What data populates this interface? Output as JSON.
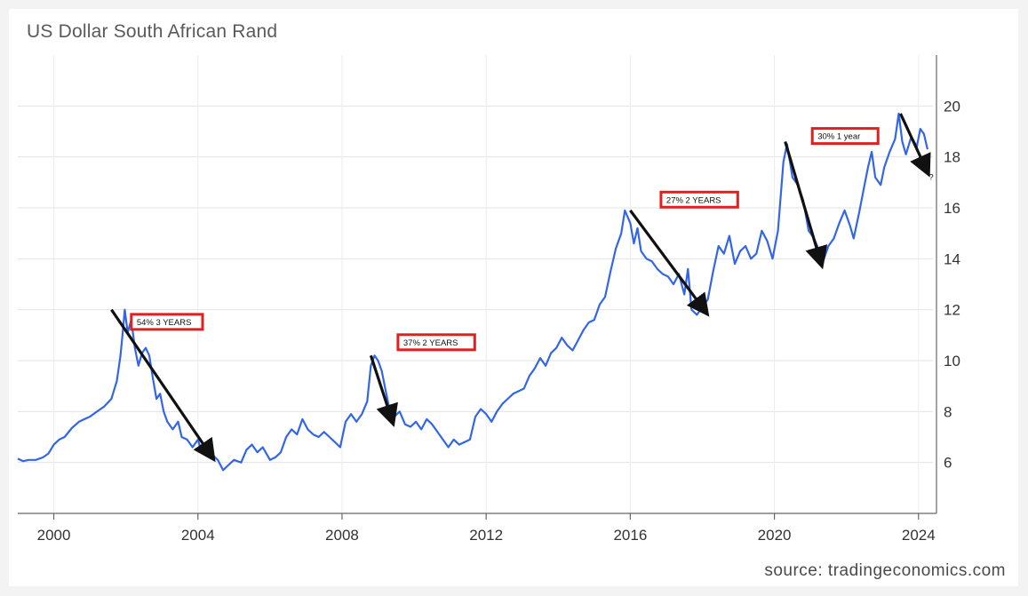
{
  "chart_data": {
    "type": "line",
    "title": "US Dollar South African Rand",
    "source": "source: tradingeconomics.com",
    "xlabel": "",
    "ylabel": "",
    "xlim": [
      1999,
      2024.4
    ],
    "ylim": [
      4,
      22
    ],
    "x_ticks": [
      2000,
      2004,
      2008,
      2012,
      2016,
      2020,
      2024
    ],
    "y_ticks": [
      6,
      8,
      10,
      12,
      14,
      16,
      18,
      20
    ],
    "grid": true,
    "line_color": "#3366e6",
    "series": [
      {
        "points": [
          [
            1999.0,
            6.15
          ],
          [
            1999.15,
            6.05
          ],
          [
            1999.3,
            6.1
          ],
          [
            1999.5,
            6.1
          ],
          [
            1999.7,
            6.2
          ],
          [
            1999.85,
            6.35
          ],
          [
            2000.0,
            6.7
          ],
          [
            2000.15,
            6.9
          ],
          [
            2000.3,
            7.0
          ],
          [
            2000.5,
            7.35
          ],
          [
            2000.7,
            7.6
          ],
          [
            2000.85,
            7.7
          ],
          [
            2001.0,
            7.8
          ],
          [
            2001.2,
            8.0
          ],
          [
            2001.4,
            8.2
          ],
          [
            2001.6,
            8.5
          ],
          [
            2001.75,
            9.2
          ],
          [
            2001.85,
            10.2
          ],
          [
            2001.92,
            11.2
          ],
          [
            2001.97,
            12.0
          ],
          [
            2002.05,
            11.1
          ],
          [
            2002.15,
            11.6
          ],
          [
            2002.25,
            10.5
          ],
          [
            2002.35,
            9.8
          ],
          [
            2002.45,
            10.3
          ],
          [
            2002.55,
            10.5
          ],
          [
            2002.65,
            10.2
          ],
          [
            2002.75,
            9.3
          ],
          [
            2002.85,
            8.5
          ],
          [
            2002.95,
            8.7
          ],
          [
            2003.05,
            8.0
          ],
          [
            2003.15,
            7.6
          ],
          [
            2003.3,
            7.3
          ],
          [
            2003.45,
            7.6
          ],
          [
            2003.55,
            7.0
          ],
          [
            2003.7,
            6.9
          ],
          [
            2003.85,
            6.6
          ],
          [
            2004.0,
            6.9
          ],
          [
            2004.1,
            6.4
          ],
          [
            2004.25,
            6.8
          ],
          [
            2004.4,
            6.3
          ],
          [
            2004.55,
            6.1
          ],
          [
            2004.7,
            5.7
          ],
          [
            2004.85,
            5.9
          ],
          [
            2005.0,
            6.1
          ],
          [
            2005.2,
            6.0
          ],
          [
            2005.35,
            6.5
          ],
          [
            2005.5,
            6.7
          ],
          [
            2005.65,
            6.4
          ],
          [
            2005.8,
            6.6
          ],
          [
            2006.0,
            6.1
          ],
          [
            2006.15,
            6.2
          ],
          [
            2006.3,
            6.4
          ],
          [
            2006.45,
            7.0
          ],
          [
            2006.6,
            7.3
          ],
          [
            2006.75,
            7.1
          ],
          [
            2006.9,
            7.7
          ],
          [
            2007.05,
            7.3
          ],
          [
            2007.2,
            7.1
          ],
          [
            2007.35,
            7.0
          ],
          [
            2007.5,
            7.2
          ],
          [
            2007.65,
            7.0
          ],
          [
            2007.8,
            6.8
          ],
          [
            2007.95,
            6.6
          ],
          [
            2008.1,
            7.6
          ],
          [
            2008.25,
            7.9
          ],
          [
            2008.4,
            7.6
          ],
          [
            2008.55,
            7.9
          ],
          [
            2008.7,
            8.4
          ],
          [
            2008.8,
            9.8
          ],
          [
            2008.9,
            10.2
          ],
          [
            2009.0,
            10.0
          ],
          [
            2009.1,
            9.6
          ],
          [
            2009.2,
            8.9
          ],
          [
            2009.3,
            8.2
          ],
          [
            2009.45,
            7.8
          ],
          [
            2009.6,
            8.0
          ],
          [
            2009.75,
            7.5
          ],
          [
            2009.9,
            7.4
          ],
          [
            2010.05,
            7.6
          ],
          [
            2010.2,
            7.3
          ],
          [
            2010.35,
            7.7
          ],
          [
            2010.5,
            7.5
          ],
          [
            2010.65,
            7.2
          ],
          [
            2010.8,
            6.9
          ],
          [
            2010.95,
            6.6
          ],
          [
            2011.1,
            6.9
          ],
          [
            2011.25,
            6.7
          ],
          [
            2011.4,
            6.8
          ],
          [
            2011.55,
            6.9
          ],
          [
            2011.7,
            7.8
          ],
          [
            2011.85,
            8.1
          ],
          [
            2012.0,
            7.9
          ],
          [
            2012.15,
            7.6
          ],
          [
            2012.3,
            8.0
          ],
          [
            2012.45,
            8.3
          ],
          [
            2012.6,
            8.5
          ],
          [
            2012.75,
            8.7
          ],
          [
            2012.9,
            8.8
          ],
          [
            2013.05,
            8.9
          ],
          [
            2013.2,
            9.4
          ],
          [
            2013.35,
            9.7
          ],
          [
            2013.5,
            10.1
          ],
          [
            2013.65,
            9.8
          ],
          [
            2013.8,
            10.3
          ],
          [
            2013.95,
            10.5
          ],
          [
            2014.1,
            10.9
          ],
          [
            2014.25,
            10.6
          ],
          [
            2014.4,
            10.4
          ],
          [
            2014.55,
            10.8
          ],
          [
            2014.7,
            11.2
          ],
          [
            2014.85,
            11.5
          ],
          [
            2015.0,
            11.6
          ],
          [
            2015.15,
            12.2
          ],
          [
            2015.3,
            12.5
          ],
          [
            2015.45,
            13.5
          ],
          [
            2015.6,
            14.4
          ],
          [
            2015.75,
            15.0
          ],
          [
            2015.85,
            15.9
          ],
          [
            2016.0,
            15.4
          ],
          [
            2016.1,
            14.6
          ],
          [
            2016.2,
            15.2
          ],
          [
            2016.3,
            14.3
          ],
          [
            2016.45,
            14.0
          ],
          [
            2016.6,
            13.9
          ],
          [
            2016.75,
            13.6
          ],
          [
            2016.9,
            13.4
          ],
          [
            2017.05,
            13.3
          ],
          [
            2017.2,
            13.0
          ],
          [
            2017.35,
            13.4
          ],
          [
            2017.5,
            12.6
          ],
          [
            2017.6,
            13.6
          ],
          [
            2017.7,
            12.0
          ],
          [
            2017.85,
            11.8
          ],
          [
            2018.0,
            12.1
          ],
          [
            2018.15,
            12.4
          ],
          [
            2018.3,
            13.5
          ],
          [
            2018.45,
            14.5
          ],
          [
            2018.6,
            14.2
          ],
          [
            2018.75,
            14.9
          ],
          [
            2018.9,
            13.8
          ],
          [
            2019.05,
            14.3
          ],
          [
            2019.2,
            14.5
          ],
          [
            2019.35,
            14.0
          ],
          [
            2019.5,
            14.2
          ],
          [
            2019.65,
            15.1
          ],
          [
            2019.8,
            14.7
          ],
          [
            2019.95,
            14.0
          ],
          [
            2020.1,
            15.1
          ],
          [
            2020.25,
            17.8
          ],
          [
            2020.35,
            18.5
          ],
          [
            2020.5,
            17.2
          ],
          [
            2020.65,
            16.9
          ],
          [
            2020.8,
            16.3
          ],
          [
            2020.95,
            15.1
          ],
          [
            2021.1,
            14.8
          ],
          [
            2021.25,
            14.3
          ],
          [
            2021.35,
            13.9
          ],
          [
            2021.5,
            14.5
          ],
          [
            2021.65,
            14.8
          ],
          [
            2021.8,
            15.4
          ],
          [
            2021.95,
            15.9
          ],
          [
            2022.1,
            15.3
          ],
          [
            2022.2,
            14.8
          ],
          [
            2022.35,
            15.8
          ],
          [
            2022.5,
            16.9
          ],
          [
            2022.6,
            17.6
          ],
          [
            2022.7,
            18.2
          ],
          [
            2022.8,
            17.2
          ],
          [
            2022.95,
            16.9
          ],
          [
            2023.05,
            17.6
          ],
          [
            2023.2,
            18.2
          ],
          [
            2023.35,
            18.7
          ],
          [
            2023.45,
            19.7
          ],
          [
            2023.55,
            18.6
          ],
          [
            2023.65,
            18.1
          ],
          [
            2023.8,
            18.8
          ],
          [
            2023.95,
            18.4
          ],
          [
            2024.05,
            19.1
          ],
          [
            2024.15,
            18.9
          ],
          [
            2024.25,
            18.3
          ]
        ]
      }
    ],
    "annotations": [
      {
        "label": "54% 3 YEARS",
        "box": [
          2002.3,
          11.4
        ],
        "arrow_from": [
          2001.6,
          12.0
        ],
        "arrow_to": [
          2004.4,
          6.2
        ]
      },
      {
        "label": "37%  2 YEARS",
        "box": [
          2009.7,
          10.6
        ],
        "arrow_from": [
          2008.8,
          10.2
        ],
        "arrow_to": [
          2009.4,
          7.6
        ]
      },
      {
        "label": "27%  2 YEARS",
        "box": [
          2017.0,
          16.2
        ],
        "arrow_from": [
          2016.0,
          15.9
        ],
        "arrow_to": [
          2018.1,
          11.9
        ]
      },
      {
        "label": "30% 1 year",
        "box": [
          2021.2,
          18.7
        ],
        "arrow_from": [
          2020.3,
          18.6
        ],
        "arrow_to": [
          2021.3,
          13.8
        ]
      },
      {
        "label": "?",
        "box": [
          2024.35,
          17.1
        ],
        "arrow_from": [
          2023.5,
          19.7
        ],
        "arrow_to": [
          2024.25,
          17.4
        ]
      }
    ]
  }
}
